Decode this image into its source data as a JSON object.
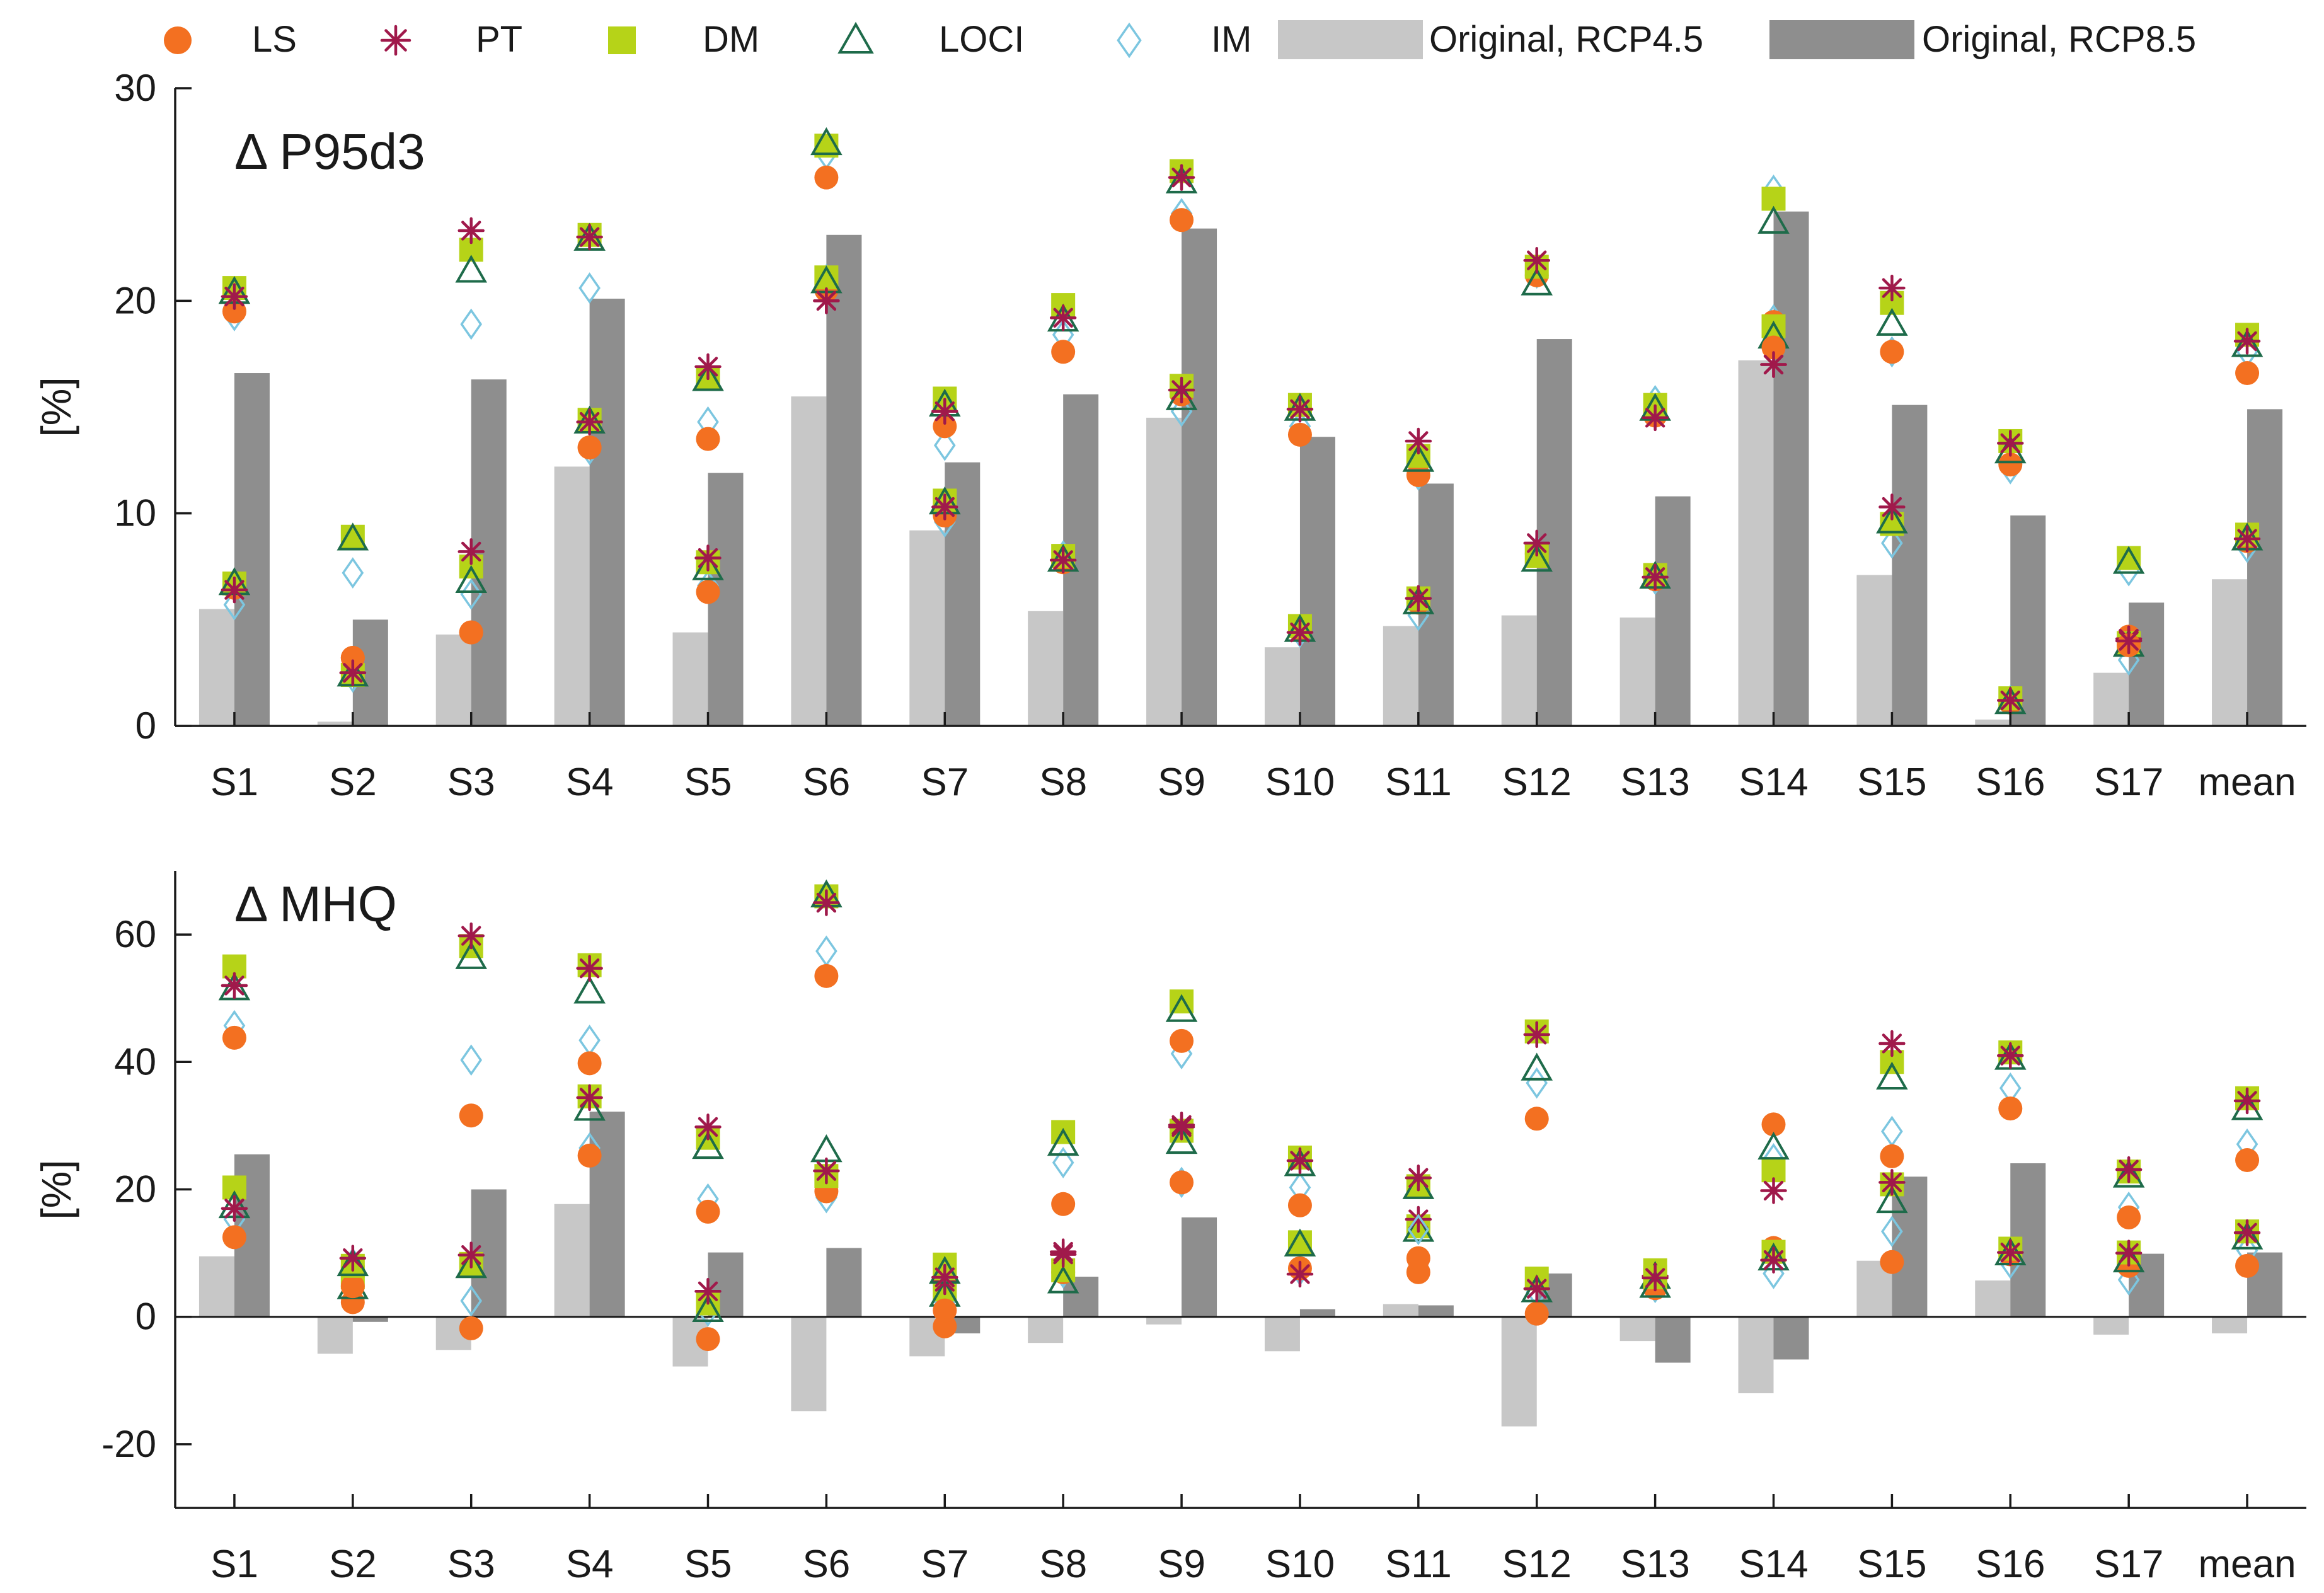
{
  "colors": {
    "LS": "#f37021",
    "PT": "#a0194b",
    "DM": "#b6d318",
    "LOCI": "#1e6b4a",
    "IM": "#7cc6e0",
    "rcp45": "#c7c7c7",
    "rcp85": "#8e8e8e",
    "axis": "#1a1a1a"
  },
  "legend": [
    {
      "key": "LS",
      "label": "LS",
      "marker": "circle"
    },
    {
      "key": "PT",
      "label": "PT",
      "marker": "asterisk"
    },
    {
      "key": "DM",
      "label": "DM",
      "marker": "square"
    },
    {
      "key": "LOCI",
      "label": "LOCI",
      "marker": "triangle"
    },
    {
      "key": "IM",
      "label": "IM",
      "marker": "diamond"
    },
    {
      "key": "rcp45",
      "label": "Original, RCP4.5",
      "marker": "bar"
    },
    {
      "key": "rcp85",
      "label": "Original, RCP8.5",
      "marker": "bar"
    }
  ],
  "chart_data": [
    {
      "type": "bar",
      "id": "p95d3",
      "title": "Δ P95d3",
      "ylabel": "[%]",
      "ylim": [
        0,
        30
      ],
      "yticks": [
        0,
        10,
        20,
        30
      ],
      "categories": [
        "S1",
        "S2",
        "S3",
        "S4",
        "S5",
        "S6",
        "S7",
        "S8",
        "S9",
        "S10",
        "S11",
        "S12",
        "S13",
        "S14",
        "S15",
        "S16",
        "S17",
        "mean"
      ],
      "bars": [
        {
          "name": "Original, RCP4.5",
          "key": "rcp45",
          "values": [
            5.5,
            0.2,
            4.3,
            12.2,
            4.4,
            15.5,
            9.2,
            5.4,
            14.5,
            3.7,
            4.7,
            5.2,
            5.1,
            17.2,
            7.1,
            0.3,
            2.5,
            6.9
          ]
        },
        {
          "name": "Original, RCP8.5",
          "key": "rcp85",
          "values": [
            16.6,
            5.0,
            16.3,
            20.1,
            11.9,
            23.1,
            12.4,
            15.6,
            23.4,
            13.6,
            11.4,
            18.2,
            10.8,
            24.2,
            15.1,
            9.9,
            5.8,
            14.9
          ]
        }
      ],
      "series": [
        {
          "name": "LS",
          "key": "LS",
          "values": [
            19.5,
            3.2,
            4.4,
            13.1,
            13.5,
            25.8,
            14.1,
            17.6,
            23.8,
            13.7,
            11.8,
            21.2,
            14.6,
            17.8,
            17.6,
            12.3,
            3.8,
            16.6
          ]
        },
        {
          "name": "PT",
          "key": "PT",
          "values": [
            20.2,
            2.5,
            23.3,
            23.0,
            16.9,
            20.0,
            14.8,
            19.2,
            25.8,
            14.9,
            13.4,
            21.9,
            14.5,
            17.0,
            20.6,
            13.3,
            4.0,
            18.1
          ]
        },
        {
          "name": "DM",
          "key": "DM",
          "values": [
            20.6,
            8.9,
            22.4,
            23.1,
            16.4,
            27.3,
            15.4,
            19.8,
            26.1,
            15.1,
            12.7,
            21.6,
            15.1,
            24.8,
            19.9,
            13.4,
            7.9,
            18.4
          ]
        },
        {
          "name": "LOCI",
          "key": "LOCI",
          "values": [
            20.4,
            8.8,
            21.4,
            22.9,
            16.3,
            27.4,
            15.1,
            19.1,
            25.6,
            14.9,
            12.5,
            20.8,
            14.9,
            23.7,
            18.9,
            12.9,
            7.7,
            17.9
          ]
        },
        {
          "name": "IM",
          "key": "IM",
          "values": [
            19.3,
            7.2,
            18.9,
            20.6,
            14.3,
            26.9,
            13.2,
            18.4,
            24.1,
            14.1,
            11.8,
            21.3,
            15.3,
            25.2,
            17.6,
            12.1,
            7.3,
            17.6
          ]
        }
      ],
      "series_lower": [
        {
          "name": "LS",
          "key": "LS",
          "values": [
            6.5,
            3.2,
            4.4,
            13.1,
            6.3,
            20.5,
            9.9,
            7.7,
            15.6,
            4.5,
            5.8,
            8.1,
            6.9,
            19.0,
            9.6,
            1.1,
            4.2,
            8.7
          ]
        },
        {
          "name": "PT",
          "key": "PT",
          "values": [
            6.4,
            2.5,
            8.2,
            14.3,
            7.9,
            20.0,
            10.3,
            7.8,
            15.8,
            4.4,
            6.0,
            8.6,
            7.0,
            17.0,
            10.3,
            1.2,
            4.1,
            8.8
          ]
        },
        {
          "name": "DM",
          "key": "DM",
          "values": [
            6.7,
            2.4,
            7.5,
            14.4,
            7.7,
            21.1,
            10.6,
            8.0,
            16.0,
            4.7,
            6.0,
            8.0,
            7.1,
            18.8,
            9.5,
            1.3,
            3.9,
            9.0
          ]
        },
        {
          "name": "LOCI",
          "key": "LOCI",
          "values": [
            6.7,
            2.4,
            6.8,
            14.3,
            7.4,
            20.9,
            10.5,
            7.8,
            15.4,
            4.5,
            5.8,
            7.8,
            7.0,
            18.3,
            9.6,
            1.1,
            3.8,
            8.8
          ]
        },
        {
          "name": "IM",
          "key": "IM",
          "values": [
            5.7,
            2.3,
            6.2,
            13.0,
            6.6,
            21.0,
            9.6,
            8.0,
            14.8,
            4.4,
            5.2,
            8.2,
            6.9,
            19.1,
            8.6,
            1.2,
            3.1,
            8.4
          ]
        }
      ]
    },
    {
      "type": "bar",
      "id": "mhq",
      "title": "Δ MHQ",
      "ylabel": "[%]",
      "ylim": [
        -30,
        70
      ],
      "yticks": [
        -20,
        0,
        20,
        40,
        60
      ],
      "categories": [
        "S1",
        "S2",
        "S3",
        "S4",
        "S5",
        "S6",
        "S7",
        "S8",
        "S9",
        "S10",
        "S11",
        "S12",
        "S13",
        "S14",
        "S15",
        "S16",
        "S17",
        "mean"
      ],
      "bars": [
        {
          "name": "Original, RCP4.5",
          "key": "rcp45",
          "values": [
            9.5,
            -5.8,
            -5.2,
            17.7,
            -7.8,
            -14.8,
            -6.2,
            -4.1,
            -1.2,
            -5.4,
            2.0,
            -17.2,
            -3.8,
            -12.0,
            8.8,
            5.7,
            -2.8,
            -2.6
          ]
        },
        {
          "name": "Original, RCP8.5",
          "key": "rcp85",
          "values": [
            25.5,
            -0.8,
            20.0,
            32.2,
            10.1,
            10.8,
            -2.6,
            6.3,
            15.6,
            1.2,
            1.8,
            6.8,
            -7.2,
            -6.7,
            22.0,
            24.1,
            9.9,
            10.1
          ]
        }
      ],
      "series": [
        {
          "name": "LS",
          "key": "LS",
          "values": [
            43.8,
            4.8,
            31.6,
            39.8,
            16.5,
            53.5,
            1.0,
            17.7,
            43.3,
            17.5,
            9.2,
            31.1,
            4.5,
            30.2,
            25.2,
            32.7,
            15.6,
            24.6
          ]
        },
        {
          "name": "PT",
          "key": "PT",
          "values": [
            52.0,
            9.2,
            59.8,
            54.7,
            29.8,
            65.0,
            6.2,
            9.8,
            29.8,
            24.5,
            21.8,
            44.3,
            6.1,
            19.8,
            42.9,
            41.0,
            23.1,
            33.9
          ]
        },
        {
          "name": "DM",
          "key": "DM",
          "values": [
            55.0,
            8.0,
            58.2,
            55.2,
            28.1,
            66.0,
            8.2,
            29.0,
            49.5,
            25.0,
            20.5,
            44.8,
            6.2,
            23.0,
            40.0,
            41.5,
            22.8,
            34.3
          ]
        },
        {
          "name": "LOCI",
          "key": "LOCI",
          "values": [
            51.5,
            8.2,
            56.4,
            51.0,
            26.6,
            66.1,
            7.0,
            27.1,
            48.1,
            23.9,
            20.3,
            38.9,
            4.8,
            26.5,
            37.5,
            40.6,
            22.1,
            32.7
          ]
        },
        {
          "name": "IM",
          "key": "IM",
          "values": [
            45.7,
            8.4,
            40.3,
            43.4,
            18.5,
            57.4,
            7.4,
            24.2,
            41.3,
            20.3,
            13.7,
            36.7,
            4.6,
            24.8,
            29.1,
            35.9,
            17.2,
            27.1
          ]
        }
      ],
      "series_lower": [
        {
          "name": "LS",
          "key": "LS",
          "values": [
            12.5,
            2.3,
            -1.8,
            25.3,
            -3.5,
            19.7,
            -1.5,
            7.0,
            21.1,
            7.6,
            7.0,
            0.5,
            5.6,
            10.8,
            8.6,
            9.8,
            8.0,
            8.0
          ]
        },
        {
          "name": "PT",
          "key": "PT",
          "values": [
            17.0,
            6.9,
            9.7,
            34.4,
            4.0,
            22.9,
            5.5,
            10.2,
            30.1,
            6.7,
            15.3,
            4.4,
            6.4,
            8.9,
            21.1,
            10.1,
            10.0,
            13.2
          ]
        },
        {
          "name": "DM",
          "key": "DM",
          "values": [
            20.3,
            6.2,
            8.3,
            34.6,
            2.1,
            22.1,
            4.3,
            7.3,
            29.2,
            11.7,
            14.2,
            6.0,
            7.3,
            10.2,
            20.8,
            10.7,
            10.1,
            13.4
          ]
        },
        {
          "name": "LOCI",
          "key": "LOCI",
          "values": [
            17.3,
            4.6,
            7.9,
            32.6,
            1.0,
            26.1,
            3.4,
            5.5,
            27.4,
            11.3,
            13.6,
            4.1,
            6.2,
            9.1,
            18.1,
            9.9,
            8.8,
            12.4
          ]
        },
        {
          "name": "IM",
          "key": "IM",
          "values": [
            15.3,
            4.5,
            2.5,
            26.5,
            0.9,
            18.7,
            2.3,
            6.9,
            21.1,
            7.3,
            7.6,
            3.9,
            5.2,
            6.8,
            13.4,
            8.4,
            5.8,
            10.4
          ]
        }
      ]
    }
  ]
}
